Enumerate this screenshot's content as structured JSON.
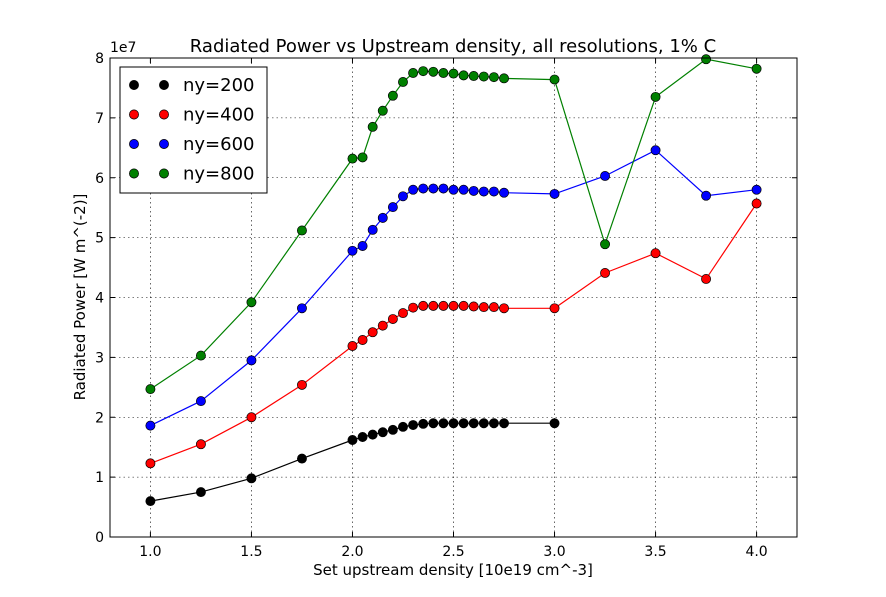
{
  "chart_data": {
    "type": "line",
    "title": "Radiated Power vs Upstream density, all resolutions, 1% C",
    "xlabel": "Set upstream density [10e19 cm^-3]",
    "ylabel": "Radiated Power [W m^(-2)]",
    "y_scale_label": "1e7",
    "xlim": [
      0.8,
      4.2
    ],
    "ylim": [
      0,
      8
    ],
    "xticks": [
      1.0,
      1.5,
      2.0,
      2.5,
      3.0,
      3.5,
      4.0
    ],
    "xtick_labels": [
      "1.0",
      "1.5",
      "2.0",
      "2.5",
      "3.0",
      "3.5",
      "4.0"
    ],
    "yticks": [
      0,
      1,
      2,
      3,
      4,
      5,
      6,
      7,
      8
    ],
    "ytick_labels": [
      "0",
      "1",
      "2",
      "3",
      "4",
      "5",
      "6",
      "7",
      "8"
    ],
    "grid": true,
    "legend_position": "top-left",
    "series": [
      {
        "name": "ny=200",
        "color": "#000000",
        "x": [
          1.0,
          1.25,
          1.5,
          1.75,
          2.0,
          2.05,
          2.1,
          2.15,
          2.2,
          2.25,
          2.3,
          2.35,
          2.4,
          2.45,
          2.5,
          2.55,
          2.6,
          2.65,
          2.7,
          2.75,
          3.0
        ],
        "y": [
          0.6,
          0.75,
          0.98,
          1.31,
          1.62,
          1.67,
          1.71,
          1.75,
          1.79,
          1.84,
          1.87,
          1.89,
          1.9,
          1.9,
          1.9,
          1.9,
          1.9,
          1.9,
          1.9,
          1.9,
          1.9
        ]
      },
      {
        "name": "ny=400",
        "color": "#ff0000",
        "x": [
          1.0,
          1.25,
          1.5,
          1.75,
          2.0,
          2.05,
          2.1,
          2.15,
          2.2,
          2.25,
          2.3,
          2.35,
          2.4,
          2.45,
          2.5,
          2.55,
          2.6,
          2.65,
          2.7,
          2.75,
          3.0,
          3.25,
          3.5,
          3.75,
          4.0
        ],
        "y": [
          1.23,
          1.55,
          2.0,
          2.54,
          3.19,
          3.29,
          3.42,
          3.53,
          3.64,
          3.74,
          3.83,
          3.86,
          3.86,
          3.86,
          3.86,
          3.86,
          3.85,
          3.84,
          3.84,
          3.82,
          3.82,
          4.41,
          4.74,
          4.31,
          5.57
        ]
      },
      {
        "name": "ny=600",
        "color": "#0000ff",
        "x": [
          1.0,
          1.25,
          1.5,
          1.75,
          2.0,
          2.05,
          2.1,
          2.15,
          2.2,
          2.25,
          2.3,
          2.35,
          2.4,
          2.45,
          2.5,
          2.55,
          2.6,
          2.65,
          2.7,
          2.75,
          3.0,
          3.25,
          3.5,
          3.75,
          4.0
        ],
        "y": [
          1.86,
          2.27,
          2.95,
          3.82,
          4.78,
          4.86,
          5.13,
          5.33,
          5.51,
          5.69,
          5.8,
          5.82,
          5.82,
          5.82,
          5.8,
          5.8,
          5.78,
          5.77,
          5.77,
          5.75,
          5.73,
          6.03,
          6.46,
          5.7,
          5.8
        ]
      },
      {
        "name": "ny=800",
        "color": "#008000",
        "x": [
          1.0,
          1.25,
          1.5,
          1.75,
          2.0,
          2.05,
          2.1,
          2.15,
          2.2,
          2.25,
          2.3,
          2.35,
          2.4,
          2.45,
          2.5,
          2.55,
          2.6,
          2.65,
          2.7,
          2.75,
          3.0,
          3.25,
          3.5,
          3.75,
          4.0
        ],
        "y": [
          2.47,
          3.03,
          3.92,
          5.12,
          6.32,
          6.34,
          6.85,
          7.12,
          7.37,
          7.6,
          7.75,
          7.78,
          7.77,
          7.75,
          7.74,
          7.71,
          7.7,
          7.69,
          7.68,
          7.66,
          7.64,
          4.89,
          7.35,
          7.98,
          7.82
        ]
      }
    ]
  }
}
